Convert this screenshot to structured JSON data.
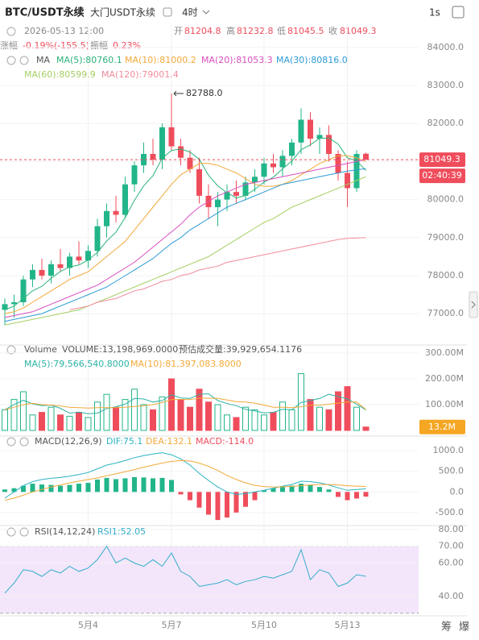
{
  "header": {
    "symbol": "BTC/USDT永续",
    "name": "大门USDT永续",
    "interval": "4时",
    "speed": "1s"
  },
  "info": {
    "time": "2026-05-13 12:00",
    "items": [
      {
        "label": "开",
        "value": "81204.8"
      },
      {
        "label": "高",
        "value": "81232.8"
      },
      {
        "label": "低",
        "value": "81045.5"
      },
      {
        "label": "收",
        "value": "81049.3"
      }
    ],
    "change": {
      "label": "涨幅",
      "value": "-0.19%(-155.5)"
    },
    "amplitude": {
      "label": "振幅",
      "value": "0.23%"
    }
  },
  "footer": {
    "chips": "筹",
    "burst": "爆"
  },
  "chart_data": [
    {
      "type": "candlestick",
      "indicator": "MA",
      "categories": [
        null,
        null,
        null,
        null,
        null,
        null,
        null,
        null,
        null,
        "5月4",
        null,
        null,
        null,
        null,
        null,
        null,
        null,
        null,
        "5月7",
        null,
        null,
        null,
        null,
        null,
        null,
        null,
        null,
        null,
        "5月10",
        null,
        null,
        null,
        null,
        null,
        null,
        null,
        null,
        "5月13",
        null,
        null
      ],
      "open": [
        77100,
        77250,
        77300,
        77900,
        78150,
        78000,
        78300,
        78200,
        78500,
        78400,
        78650,
        79300,
        79700,
        79600,
        80400,
        80900,
        81200,
        81050,
        81900,
        81400,
        81100,
        80800,
        80100,
        79800,
        80000,
        80200,
        80100,
        80450,
        80600,
        80950,
        80850,
        81150,
        81500,
        82100,
        81600,
        81700,
        81200,
        80700,
        80300,
        81204.8
      ],
      "high": [
        77400,
        77500,
        78000,
        78300,
        78450,
        78400,
        78700,
        78600,
        78900,
        78800,
        79500,
        79900,
        80100,
        80600,
        81000,
        81500,
        81600,
        82000,
        82788,
        81600,
        81300,
        81100,
        80400,
        80200,
        80400,
        80500,
        80600,
        80800,
        81100,
        81200,
        81300,
        81600,
        82400,
        82300,
        81900,
        81950,
        81300,
        81000,
        81300,
        81232.8
      ],
      "low": [
        76700,
        76900,
        77200,
        77700,
        77900,
        77800,
        78100,
        78000,
        78300,
        78200,
        78500,
        79000,
        79400,
        79500,
        80200,
        80700,
        80900,
        80800,
        81300,
        80900,
        80700,
        79900,
        79500,
        79300,
        79700,
        79900,
        80000,
        80200,
        80400,
        80700,
        80600,
        80900,
        81200,
        81400,
        81200,
        81000,
        80500,
        79800,
        80200,
        81045.5
      ],
      "close": [
        77250,
        77300,
        77900,
        78150,
        78000,
        78300,
        78200,
        78500,
        78400,
        78650,
        79300,
        79700,
        79600,
        80400,
        80900,
        81200,
        81050,
        81900,
        81400,
        81100,
        80800,
        80100,
        79800,
        80000,
        80200,
        80100,
        80450,
        80600,
        80950,
        80850,
        81150,
        81500,
        82100,
        81600,
        81700,
        81200,
        80700,
        80300,
        81200,
        81049.3
      ],
      "up_color": "#22b58a",
      "down_color": "#ef4d5c",
      "lines": [
        {
          "name": "MA(5):80760.1",
          "color": "#2bb37a",
          "values": [
            77100,
            77200,
            77400,
            77600,
            77720,
            77930,
            78110,
            78230,
            78280,
            78410,
            78610,
            78910,
            79140,
            79530,
            79980,
            80360,
            80630,
            81090,
            81290,
            81330,
            81250,
            81060,
            80640,
            80360,
            80180,
            80040,
            80110,
            80270,
            80460,
            80590,
            80810,
            81010,
            81310,
            81440,
            81610,
            81620,
            81460,
            81100,
            81020,
            80760.1
          ]
        },
        {
          "name": "MA(10):81000.2",
          "color": "#f2a93b",
          "values": [
            77000,
            77050,
            77150,
            77300,
            77450,
            77600,
            77750,
            77900,
            78000,
            78100,
            78300,
            78500,
            78700,
            78900,
            79200,
            79500,
            79800,
            80100,
            80400,
            80650,
            80800,
            80950,
            80950,
            80900,
            80800,
            80700,
            80550,
            80400,
            80350,
            80350,
            80400,
            80500,
            80650,
            80800,
            80950,
            81050,
            81150,
            81150,
            81100,
            81000.2
          ]
        },
        {
          "name": "MA(20):81053.3",
          "color": "#d94fc0",
          "values": [
            76900,
            76950,
            77000,
            77050,
            77150,
            77250,
            77350,
            77450,
            77550,
            77650,
            77750,
            77900,
            78050,
            78200,
            78350,
            78550,
            78750,
            78950,
            79150,
            79350,
            79600,
            79800,
            79950,
            80100,
            80200,
            80300,
            80400,
            80450,
            80500,
            80550,
            80600,
            80650,
            80700,
            80750,
            80800,
            80850,
            80900,
            80950,
            81000,
            81053.3
          ]
        },
        {
          "name": "MA(30):80816.0",
          "color": "#2d9bd6",
          "values": [
            76800,
            76850,
            76900,
            76950,
            77000,
            77100,
            77200,
            77300,
            77400,
            77500,
            77600,
            77700,
            77850,
            78000,
            78150,
            78300,
            78450,
            78650,
            78850,
            79000,
            79200,
            79350,
            79500,
            79650,
            79800,
            79900,
            80000,
            80100,
            80200,
            80300,
            80400,
            80450,
            80500,
            80550,
            80600,
            80650,
            80700,
            80750,
            80780,
            80816
          ]
        },
        {
          "name": "MA(60):80599.9",
          "color": "#a5cf62",
          "values": [
            76700,
            76750,
            76800,
            76850,
            76900,
            76950,
            77000,
            77050,
            77100,
            77200,
            77300,
            77400,
            77500,
            77600,
            77700,
            77800,
            77900,
            78000,
            78100,
            78200,
            78300,
            78400,
            78500,
            78650,
            78800,
            78950,
            79100,
            79250,
            79400,
            79500,
            79650,
            79800,
            79900,
            80000,
            80100,
            80200,
            80300,
            80400,
            80500,
            80599.9
          ]
        },
        {
          "name": "MA(120):79001.4",
          "color": "#f08c9c",
          "values": [
            null,
            null,
            null,
            null,
            null,
            null,
            null,
            77100,
            77150,
            77200,
            77300,
            77350,
            77400,
            77500,
            77600,
            77650,
            77750,
            77850,
            77900,
            78000,
            78050,
            78150,
            78200,
            78250,
            78350,
            78400,
            78450,
            78500,
            78550,
            78600,
            78650,
            78700,
            78750,
            78800,
            78850,
            78900,
            78950,
            78980,
            78990,
            79001.4
          ]
        }
      ],
      "ylim": [
        76240,
        84400
      ],
      "yticks": [
        {
          "value": 77000,
          "label": "77000.0"
        },
        {
          "value": 78000,
          "label": "78000.0"
        },
        {
          "value": 79000,
          "label": "79000.0"
        },
        {
          "value": 80000,
          "label": "80000.0"
        },
        {
          "value": 81000,
          "label": "81000.0"
        },
        {
          "value": 82000,
          "label": "82000.0"
        },
        {
          "value": 83000,
          "label": "83000.0"
        },
        {
          "value": 84000,
          "label": "84000.0"
        }
      ],
      "last_price": 81049.3,
      "countdown": "02:40:39",
      "peak": {
        "value": 82788,
        "label": "82788.0"
      }
    },
    {
      "type": "volume",
      "title": "Volume",
      "legend": [
        "VOLUME:13,198,969.0000",
        "预估成交量:39,929,654.1176"
      ],
      "values": [
        80,
        120,
        150,
        60,
        70,
        90,
        60,
        55,
        70,
        50,
        110,
        140,
        90,
        120,
        160,
        100,
        80,
        130,
        200,
        120,
        90,
        160,
        110,
        100,
        60,
        50,
        90,
        80,
        60,
        70,
        110,
        80,
        220,
        120,
        90,
        80,
        150,
        170,
        90,
        13.2
      ],
      "lines": [
        {
          "name": "MA(5):79,566,540.8000",
          "color": "#2bb3a5",
          "values": [
            80,
            100,
            117,
            103,
            96,
            98,
            86,
            67,
            71,
            65,
            67,
            85,
            92,
            102,
            124,
            122,
            110,
            116,
            138,
            126,
            124,
            140,
            142,
            116,
            104,
            96,
            82,
            76,
            68,
            70,
            82,
            80,
            108,
            116,
            124,
            140,
            132,
            122,
            102,
            79.6
          ]
        },
        {
          "name": "MA(10):81,397,083.8000",
          "color": "#f2a93b",
          "values": [
            80,
            90,
            100,
            105,
            100,
            98,
            95,
            90,
            88,
            87,
            88,
            88,
            88,
            90,
            93,
            96,
            100,
            108,
            120,
            120,
            120,
            125,
            125,
            124,
            118,
            112,
            110,
            106,
            98,
            90,
            90,
            88,
            92,
            98,
            98,
            102,
            106,
            110,
            110,
            81.4
          ]
        }
      ],
      "ylim": [
        0,
        325
      ],
      "yticks": [
        {
          "value": 100,
          "label": "100.00M"
        },
        {
          "value": 200,
          "label": "200.00M"
        },
        {
          "value": 300,
          "label": "300.00M"
        }
      ],
      "current": {
        "value": 13.2,
        "label": "13.2M"
      },
      "current_color": "#f5a623"
    },
    {
      "type": "macd",
      "title": "MACD(12,26,9)",
      "hist_name": "MACD:-114.0",
      "values": [
        60,
        90,
        150,
        200,
        180,
        170,
        150,
        170,
        200,
        220,
        300,
        340,
        310,
        330,
        360,
        350,
        330,
        340,
        290,
        -60,
        -200,
        -380,
        -550,
        -680,
        -620,
        -500,
        -360,
        -200,
        40,
        90,
        120,
        150,
        200,
        170,
        120,
        60,
        -120,
        -200,
        -160,
        -114
      ],
      "series": [
        {
          "name": "DIF:75.1",
          "color": "#2bb3c4",
          "values": [
            -150,
            0,
            150,
            250,
            300,
            330,
            350,
            380,
            420,
            470,
            560,
            650,
            700,
            760,
            830,
            880,
            920,
            950,
            900,
            800,
            650,
            450,
            280,
            120,
            0,
            -60,
            -40,
            0,
            40,
            90,
            140,
            180,
            260,
            250,
            220,
            170,
            100,
            40,
            60,
            75.1
          ]
        },
        {
          "name": "DEA:132.1",
          "color": "#f2a93b",
          "values": [
            -200,
            -150,
            -80,
            0,
            60,
            120,
            170,
            220,
            260,
            300,
            340,
            390,
            440,
            490,
            540,
            600,
            650,
            700,
            740,
            760,
            750,
            700,
            620,
            520,
            400,
            300,
            220,
            160,
            130,
            120,
            125,
            135,
            150,
            170,
            180,
            180,
            170,
            150,
            140,
            132.1
          ]
        }
      ],
      "ylim": [
        -775,
        1275
      ],
      "yticks": [
        {
          "value": -500,
          "label": "-500.0"
        },
        {
          "value": 0,
          "label": "0.0"
        },
        {
          "value": 500,
          "label": "500.0"
        },
        {
          "value": 1000,
          "label": "1000.0"
        }
      ]
    },
    {
      "type": "line",
      "title": "RSI(14,12,24)",
      "series": [
        {
          "name": "RSI1:52.05",
          "color": "#33aecb",
          "values": [
            42,
            48,
            56,
            55,
            52,
            56,
            54,
            58,
            55,
            57,
            62,
            70,
            60,
            63,
            60,
            58,
            62,
            58,
            66,
            55,
            52,
            46,
            47,
            48,
            50,
            47,
            49,
            50,
            52,
            51,
            53,
            55,
            68,
            50,
            56,
            54,
            46,
            48,
            53,
            52.05
          ]
        }
      ],
      "ylim": [
        29.4,
        82.4
      ],
      "yticks": [
        {
          "value": 40,
          "label": "40.00"
        },
        {
          "value": 60,
          "label": "60.00"
        },
        {
          "value": 70,
          "label": "70.00"
        },
        {
          "value": 80,
          "label": "80.00"
        }
      ],
      "overbought": 70,
      "oversold": 30,
      "band_color": "#f3e6fb"
    }
  ]
}
